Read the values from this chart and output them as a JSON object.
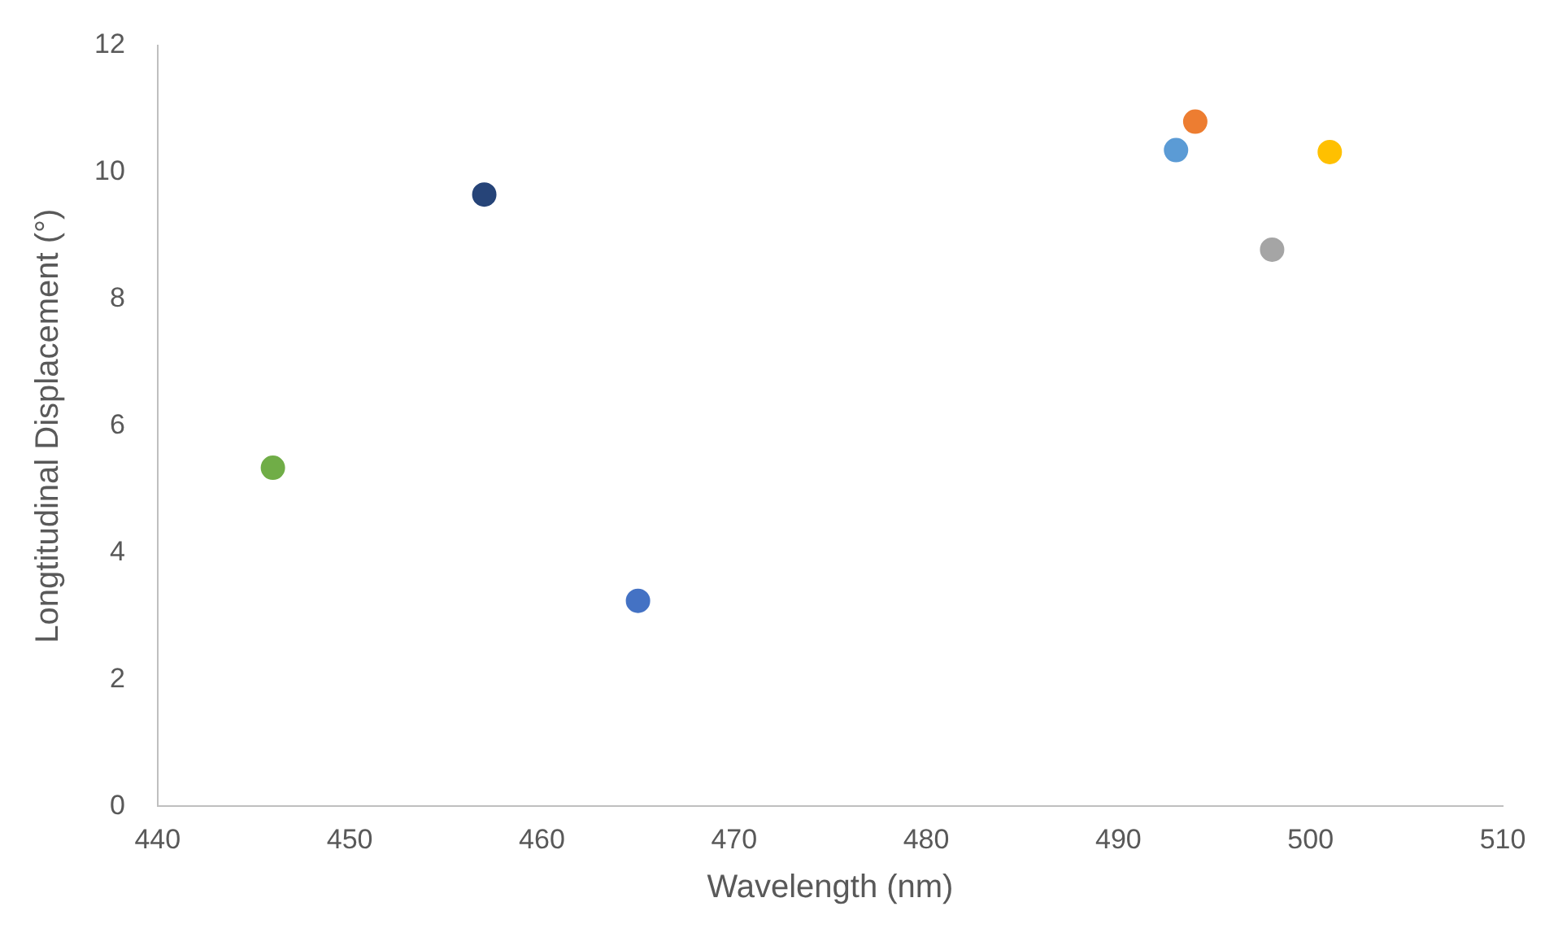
{
  "chart_data": {
    "type": "scatter",
    "xlabel": "Wavelength (nm)",
    "ylabel": "Longtitudinal Displacement (°)",
    "x": [
      446,
      457,
      465,
      493,
      494,
      498,
      501
    ],
    "values": [
      5.34,
      9.65,
      3.24,
      10.35,
      10.8,
      8.78,
      10.32
    ],
    "colors": [
      "#70ad47",
      "#264478",
      "#4472c4",
      "#5b9bd5",
      "#ed7d31",
      "#a5a5a5",
      "#ffc000"
    ],
    "xlim": [
      440,
      510
    ],
    "xticks": [
      440,
      450,
      460,
      470,
      480,
      490,
      500,
      510
    ],
    "ylim": [
      0,
      12
    ],
    "yticks": [
      0,
      2,
      4,
      6,
      8,
      10,
      12
    ],
    "grid": false,
    "legend": false,
    "marker": "circle"
  }
}
